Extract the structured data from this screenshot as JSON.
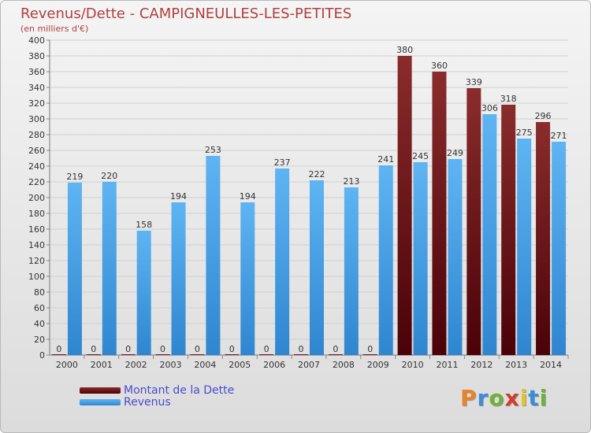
{
  "header": {
    "title": "Revenus/Dette - CAMPIGNEULLES-LES-PETITES",
    "subtitle": "(en milliers d'€)"
  },
  "colors": {
    "dette": "#6b0e12",
    "revenus": "#4aa3e8"
  },
  "logo": {
    "text": "Proxiti"
  },
  "chart_data": {
    "type": "bar",
    "title": "Revenus/Dette - CAMPIGNEULLES-LES-PETITES",
    "subtitle": "(en milliers d'€)",
    "categories": [
      "2000",
      "2001",
      "2002",
      "2003",
      "2004",
      "2005",
      "2006",
      "2007",
      "2008",
      "2009",
      "2010",
      "2011",
      "2012",
      "2013",
      "2014"
    ],
    "series": [
      {
        "name": "Montant de la Dette",
        "values": [
          0,
          0,
          0,
          0,
          0,
          0,
          0,
          0,
          0,
          0,
          380,
          360,
          339,
          318,
          296
        ]
      },
      {
        "name": "Revenus",
        "values": [
          219,
          220,
          158,
          194,
          253,
          194,
          237,
          222,
          213,
          241,
          245,
          249,
          306,
          275,
          271
        ]
      }
    ],
    "ylim": [
      0,
      400
    ],
    "yticks": [
      0,
      20,
      40,
      60,
      80,
      100,
      120,
      140,
      160,
      180,
      200,
      220,
      240,
      260,
      280,
      300,
      320,
      340,
      360,
      380,
      400
    ],
    "grid": true,
    "legend_position": "bottom-left"
  }
}
